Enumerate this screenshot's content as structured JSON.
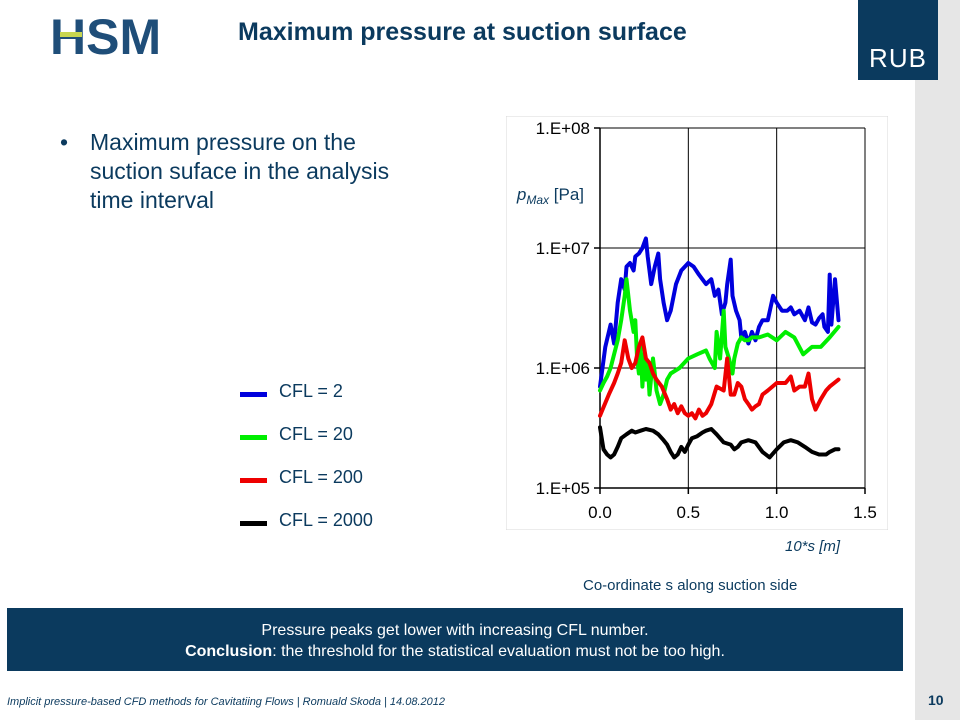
{
  "header": {
    "title": "Maximum pressure at suction surface",
    "logo_left_text": "HSM",
    "logo_right_text": "RUB"
  },
  "bullet": {
    "text": "Maximum pressure on the suction suface in the analysis time interval"
  },
  "legend": [
    {
      "label": "CFL = 2",
      "color": "#0000dd"
    },
    {
      "label": "CFL = 20",
      "color": "#00ee00"
    },
    {
      "label": "CFL = 200",
      "color": "#ee0000"
    },
    {
      "label": "CFL = 2000",
      "color": "#000000"
    }
  ],
  "chart_data": {
    "type": "line",
    "ylabel_main": "p",
    "ylabel_sub": "Max",
    "ylabel_unit": "[Pa]",
    "xlabel_unit": "10*s [m]",
    "xlabel_caption": "Co-ordinate s along suction side",
    "xlim": [
      0.0,
      1.5
    ],
    "ylim": [
      100000,
      100000000
    ],
    "yscale": "log",
    "x_ticks": [
      "0.0",
      "0.5",
      "1.0",
      "1.5"
    ],
    "y_ticks": [
      "1.E+05",
      "1.E+06",
      "1.E+07",
      "1.E+08"
    ],
    "grid": true,
    "series": [
      {
        "name": "CFL = 2",
        "color": "#0000dd",
        "x": [
          0.0,
          0.03,
          0.06,
          0.08,
          0.1,
          0.12,
          0.14,
          0.15,
          0.17,
          0.19,
          0.2,
          0.22,
          0.24,
          0.26,
          0.27,
          0.29,
          0.31,
          0.33,
          0.34,
          0.36,
          0.38,
          0.4,
          0.43,
          0.46,
          0.5,
          0.53,
          0.56,
          0.6,
          0.63,
          0.65,
          0.67,
          0.69,
          0.71,
          0.72,
          0.74,
          0.75,
          0.77,
          0.79,
          0.8,
          0.82,
          0.84,
          0.86,
          0.88,
          0.9,
          0.92,
          0.95,
          0.98,
          1.0,
          1.03,
          1.06,
          1.08,
          1.1,
          1.13,
          1.16,
          1.18,
          1.2,
          1.22,
          1.24,
          1.26,
          1.27,
          1.29,
          1.3,
          1.31,
          1.33,
          1.35
        ],
        "y": [
          700000,
          1500000,
          2300000,
          1600000,
          3500000,
          5500000,
          4500000,
          7000000,
          7500000,
          6500000,
          8500000,
          9000000,
          10000000,
          12000000,
          8500000,
          5000000,
          7000000,
          9000000,
          5500000,
          3500000,
          2500000,
          3000000,
          5000000,
          6500000,
          7500000,
          7000000,
          6000000,
          5000000,
          5500000,
          4000000,
          4500000,
          2800000,
          3500000,
          5000000,
          8000000,
          4000000,
          3000000,
          2500000,
          1800000,
          2000000,
          1600000,
          2000000,
          1700000,
          2200000,
          2500000,
          2500000,
          4000000,
          3500000,
          3000000,
          3000000,
          3200000,
          2800000,
          3000000,
          2500000,
          3200000,
          2400000,
          2300000,
          2600000,
          2800000,
          2200000,
          2000000,
          6000000,
          2300000,
          5500000,
          2500000
        ]
      },
      {
        "name": "CFL = 20",
        "color": "#00ee00",
        "x": [
          0.0,
          0.02,
          0.04,
          0.06,
          0.08,
          0.1,
          0.12,
          0.14,
          0.15,
          0.17,
          0.19,
          0.2,
          0.21,
          0.22,
          0.23,
          0.24,
          0.25,
          0.26,
          0.27,
          0.28,
          0.3,
          0.31,
          0.32,
          0.34,
          0.36,
          0.38,
          0.4,
          0.45,
          0.5,
          0.55,
          0.6,
          0.62,
          0.65,
          0.66,
          0.68,
          0.7,
          0.71,
          0.73,
          0.75,
          0.76,
          0.78,
          0.8,
          0.82,
          0.84,
          0.86,
          0.88,
          0.9,
          0.95,
          1.0,
          1.05,
          1.1,
          1.15,
          1.2,
          1.25,
          1.3,
          1.35
        ],
        "y": [
          650000,
          750000,
          850000,
          1000000,
          1300000,
          1700000,
          2500000,
          4000000,
          5500000,
          3000000,
          2000000,
          2500000,
          1200000,
          900000,
          1500000,
          700000,
          1300000,
          800000,
          1100000,
          600000,
          1200000,
          900000,
          650000,
          500000,
          600000,
          800000,
          900000,
          1000000,
          1200000,
          1300000,
          1400000,
          1200000,
          1000000,
          2000000,
          1200000,
          3000000,
          1500000,
          1200000,
          900000,
          1200000,
          1600000,
          1800000,
          1700000,
          1700000,
          1800000,
          1800000,
          1800000,
          1900000,
          1700000,
          2000000,
          1800000,
          1300000,
          1500000,
          1500000,
          1800000,
          2200000
        ]
      },
      {
        "name": "CFL = 200",
        "color": "#ee0000",
        "x": [
          0.0,
          0.02,
          0.05,
          0.08,
          0.1,
          0.12,
          0.14,
          0.16,
          0.18,
          0.2,
          0.22,
          0.24,
          0.26,
          0.28,
          0.3,
          0.32,
          0.35,
          0.38,
          0.4,
          0.42,
          0.44,
          0.46,
          0.48,
          0.5,
          0.52,
          0.54,
          0.56,
          0.58,
          0.6,
          0.63,
          0.66,
          0.7,
          0.72,
          0.74,
          0.76,
          0.78,
          0.8,
          0.82,
          0.84,
          0.86,
          0.88,
          0.9,
          0.92,
          0.95,
          1.0,
          1.05,
          1.08,
          1.1,
          1.13,
          1.16,
          1.18,
          1.2,
          1.22,
          1.25,
          1.28,
          1.3,
          1.35
        ],
        "y": [
          400000,
          470000,
          600000,
          750000,
          900000,
          1100000,
          1700000,
          1200000,
          1000000,
          1100000,
          1500000,
          1800000,
          1200000,
          1100000,
          900000,
          800000,
          700000,
          550000,
          450000,
          500000,
          420000,
          480000,
          420000,
          400000,
          420000,
          380000,
          450000,
          400000,
          420000,
          500000,
          700000,
          650000,
          1200000,
          600000,
          600000,
          750000,
          700000,
          550000,
          500000,
          450000,
          480000,
          500000,
          600000,
          650000,
          750000,
          750000,
          850000,
          650000,
          700000,
          700000,
          900000,
          550000,
          450000,
          550000,
          650000,
          700000,
          800000
        ]
      },
      {
        "name": "CFL = 2000",
        "color": "#000000",
        "x": [
          0.0,
          0.02,
          0.04,
          0.06,
          0.08,
          0.1,
          0.12,
          0.15,
          0.18,
          0.2,
          0.23,
          0.26,
          0.3,
          0.33,
          0.36,
          0.38,
          0.4,
          0.42,
          0.44,
          0.46,
          0.48,
          0.5,
          0.52,
          0.55,
          0.58,
          0.6,
          0.63,
          0.66,
          0.7,
          0.74,
          0.76,
          0.78,
          0.8,
          0.84,
          0.88,
          0.92,
          0.96,
          1.0,
          1.04,
          1.08,
          1.12,
          1.16,
          1.2,
          1.24,
          1.28,
          1.3,
          1.33,
          1.35
        ],
        "y": [
          320000,
          210000,
          190000,
          180000,
          190000,
          220000,
          260000,
          280000,
          300000,
          290000,
          300000,
          310000,
          300000,
          280000,
          250000,
          230000,
          200000,
          180000,
          190000,
          220000,
          200000,
          230000,
          260000,
          270000,
          290000,
          300000,
          310000,
          280000,
          240000,
          230000,
          210000,
          220000,
          240000,
          250000,
          240000,
          200000,
          180000,
          210000,
          240000,
          250000,
          240000,
          220000,
          200000,
          190000,
          190000,
          200000,
          210000,
          210000
        ]
      }
    ]
  },
  "conclusion": {
    "line1": "Pressure peaks get lower with increasing CFL number.",
    "line2_bold": "Conclusion",
    "line2_rest": ": the threshold for the statistical evaluation must not be too high."
  },
  "footer": {
    "text": "Implicit pressure-based  CFD methods for Cavitatiing Flows | Romuald  Skoda | 14.08.2012",
    "page_number": "10"
  }
}
